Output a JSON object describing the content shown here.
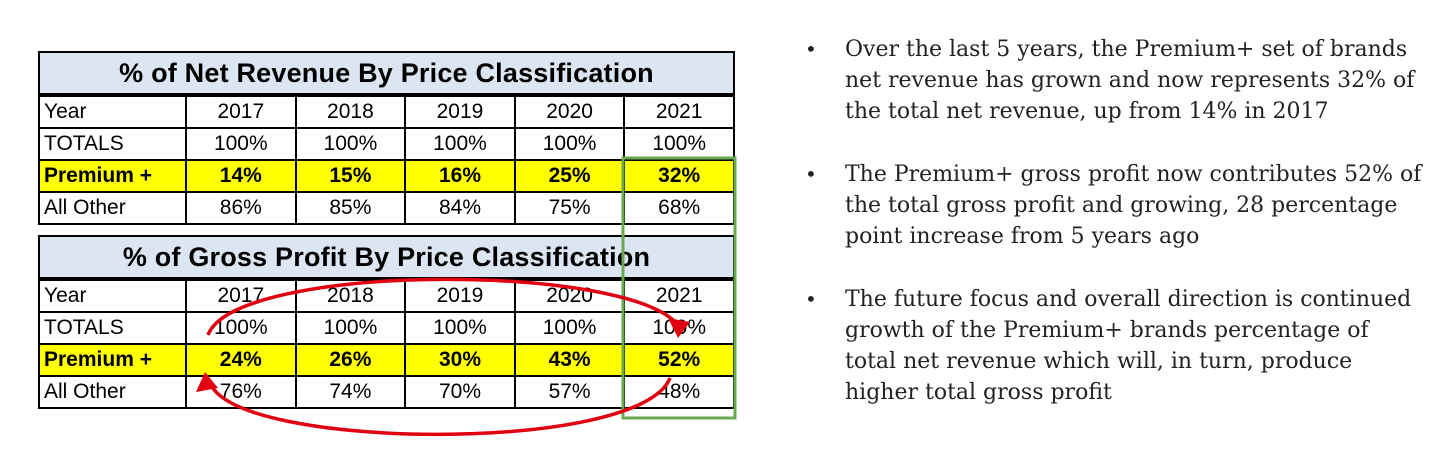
{
  "net_revenue": {
    "title": "% of Net Revenue By Price Classification",
    "rows": [
      {
        "label": "Year",
        "values": [
          "2017",
          "2018",
          "2019",
          "2020",
          "2021"
        ]
      },
      {
        "label": "TOTALS",
        "values": [
          "100%",
          "100%",
          "100%",
          "100%",
          "100%"
        ]
      },
      {
        "label": "Premium +",
        "values": [
          "14%",
          "15%",
          "16%",
          "25%",
          "32%"
        ]
      },
      {
        "label": "All Other",
        "values": [
          "86%",
          "85%",
          "84%",
          "75%",
          "68%"
        ]
      }
    ]
  },
  "gross_profit": {
    "title": "% of Gross Profit By Price Classification",
    "rows": [
      {
        "label": "Year",
        "values": [
          "2017",
          "2018",
          "2019",
          "2020",
          "2021"
        ]
      },
      {
        "label": "TOTALS",
        "values": [
          "100%",
          "100%",
          "100%",
          "100%",
          "100%"
        ]
      },
      {
        "label": "Premium +",
        "values": [
          "24%",
          "26%",
          "30%",
          "43%",
          "52%"
        ]
      },
      {
        "label": "All Other",
        "values": [
          "76%",
          "74%",
          "70%",
          "57%",
          "48%"
        ]
      }
    ]
  },
  "colors": {
    "title_fill": "#dce6f2",
    "premium_fill": "#ffff00",
    "highlight_box": "#6aa84f",
    "arrow": "#e0000f"
  },
  "bullets": [
    "Over the last 5 years, the Premium+ set of brands net revenue has grown and now represents 32% of the total net revenue, up from 14% in 2017",
    "The Premium+ gross profit now contributes 52% of the total gross profit and growing, 28 percentage point increase from 5 years ago",
    "The future focus and overall direction is continued growth of the Premium+ brands percentage of total net revenue which will, in turn, produce higher total gross profit"
  ]
}
